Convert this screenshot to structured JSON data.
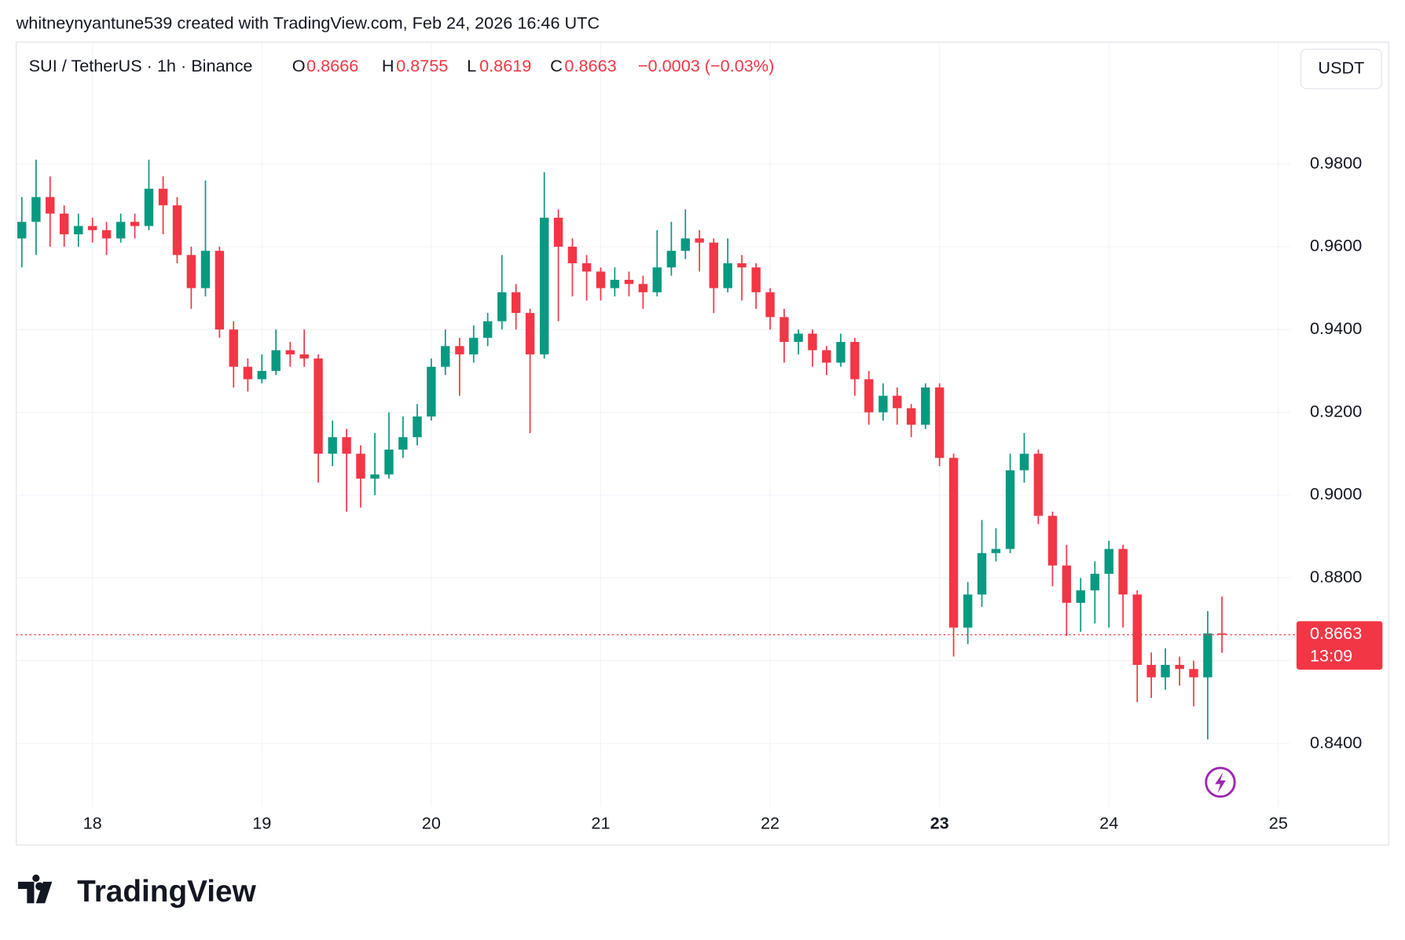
{
  "header": "whitneynyantune539 created with TradingView.com, Feb 24, 2026 16:46 UTC",
  "logo": "TradingView",
  "chart_data": {
    "type": "candlestick",
    "title": "SUI / TetherUS · 1h · Binance",
    "ohlc_labels": [
      "O",
      "H",
      "L",
      "C"
    ],
    "change": "−0.0003 (−0.03%)",
    "currency": "USDT",
    "countdown": "13:09",
    "up_color": "#089981",
    "down_color": "#f23645",
    "grid": true,
    "highlight_xtick": 23,
    "xlim": [
      17.55,
      25.07
    ],
    "xticks": [
      18,
      19,
      20,
      21,
      22,
      23,
      24,
      25
    ],
    "ylim": [
      0.8248,
      1.0092
    ],
    "yticks": [
      {
        "value": 0.84,
        "label": "0.8400"
      },
      {
        "value": 0.86,
        "label": "0.8600"
      },
      {
        "value": 0.88,
        "label": "0.8800"
      },
      {
        "value": 0.9,
        "label": "0.9000"
      },
      {
        "value": 0.92,
        "label": "0.9200"
      },
      {
        "value": 0.94,
        "label": "0.9400"
      },
      {
        "value": 0.96,
        "label": "0.9600"
      },
      {
        "value": 0.98,
        "label": "0.9800"
      }
    ],
    "x": [
      17.583,
      17.667,
      17.75,
      17.833,
      17.917,
      18,
      18.083,
      18.167,
      18.25,
      18.333,
      18.417,
      18.5,
      18.583,
      18.667,
      18.75,
      18.833,
      18.917,
      19,
      19.083,
      19.167,
      19.25,
      19.333,
      19.417,
      19.5,
      19.583,
      19.667,
      19.75,
      19.833,
      19.917,
      20,
      20.083,
      20.167,
      20.25,
      20.333,
      20.417,
      20.5,
      20.583,
      20.667,
      20.75,
      20.833,
      20.917,
      21,
      21.083,
      21.167,
      21.25,
      21.333,
      21.417,
      21.5,
      21.583,
      21.667,
      21.75,
      21.833,
      21.917,
      22,
      22.083,
      22.167,
      22.25,
      22.333,
      22.417,
      22.5,
      22.583,
      22.667,
      22.75,
      22.833,
      22.917,
      23,
      23.083,
      23.167,
      23.25,
      23.333,
      23.417,
      23.5,
      23.583,
      23.667,
      23.75,
      23.833,
      23.917,
      24,
      24.083,
      24.167,
      24.25,
      24.333,
      24.417,
      24.5,
      24.583,
      24.667
    ],
    "open": [
      0.962,
      0.966,
      0.972,
      0.968,
      0.963,
      0.965,
      0.964,
      0.962,
      0.966,
      0.965,
      0.974,
      0.97,
      0.958,
      0.95,
      0.959,
      0.94,
      0.931,
      0.928,
      0.93,
      0.935,
      0.934,
      0.933,
      0.91,
      0.914,
      0.91,
      0.904,
      0.905,
      0.911,
      0.914,
      0.919,
      0.931,
      0.936,
      0.934,
      0.938,
      0.942,
      0.949,
      0.944,
      0.934,
      0.967,
      0.96,
      0.956,
      0.954,
      0.95,
      0.952,
      0.951,
      0.949,
      0.955,
      0.959,
      0.962,
      0.961,
      0.95,
      0.956,
      0.955,
      0.949,
      0.943,
      0.937,
      0.939,
      0.935,
      0.932,
      0.937,
      0.928,
      0.92,
      0.924,
      0.921,
      0.917,
      0.926,
      0.909,
      0.868,
      0.876,
      0.886,
      0.887,
      0.906,
      0.91,
      0.895,
      0.883,
      0.874,
      0.877,
      0.881,
      0.887,
      0.876,
      0.859,
      0.856,
      0.859,
      0.858,
      0.856,
      0.8666
    ],
    "high": [
      0.972,
      0.981,
      0.977,
      0.97,
      0.968,
      0.967,
      0.966,
      0.968,
      0.968,
      0.981,
      0.977,
      0.972,
      0.96,
      0.976,
      0.96,
      0.942,
      0.933,
      0.934,
      0.94,
      0.937,
      0.94,
      0.934,
      0.918,
      0.916,
      0.912,
      0.915,
      0.92,
      0.919,
      0.922,
      0.933,
      0.94,
      0.938,
      0.941,
      0.944,
      0.958,
      0.951,
      0.945,
      0.978,
      0.969,
      0.962,
      0.958,
      0.955,
      0.955,
      0.954,
      0.953,
      0.964,
      0.966,
      0.969,
      0.964,
      0.962,
      0.962,
      0.958,
      0.956,
      0.95,
      0.945,
      0.94,
      0.94,
      0.936,
      0.939,
      0.938,
      0.93,
      0.927,
      0.926,
      0.922,
      0.927,
      0.927,
      0.91,
      0.879,
      0.894,
      0.892,
      0.91,
      0.915,
      0.911,
      0.896,
      0.888,
      0.88,
      0.884,
      0.889,
      0.888,
      0.877,
      0.862,
      0.863,
      0.861,
      0.86,
      0.872,
      0.8755
    ],
    "low": [
      0.955,
      0.958,
      0.96,
      0.96,
      0.96,
      0.961,
      0.958,
      0.961,
      0.962,
      0.964,
      0.963,
      0.956,
      0.945,
      0.948,
      0.938,
      0.926,
      0.925,
      0.927,
      0.929,
      0.931,
      0.931,
      0.903,
      0.907,
      0.896,
      0.897,
      0.9,
      0.904,
      0.909,
      0.912,
      0.918,
      0.929,
      0.924,
      0.932,
      0.936,
      0.94,
      0.94,
      0.915,
      0.933,
      0.942,
      0.948,
      0.947,
      0.947,
      0.948,
      0.948,
      0.945,
      0.948,
      0.953,
      0.957,
      0.954,
      0.944,
      0.949,
      0.947,
      0.945,
      0.94,
      0.932,
      0.934,
      0.931,
      0.929,
      0.931,
      0.924,
      0.917,
      0.918,
      0.917,
      0.914,
      0.916,
      0.907,
      0.861,
      0.864,
      0.873,
      0.884,
      0.886,
      0.903,
      0.893,
      0.878,
      0.866,
      0.867,
      0.869,
      0.868,
      0.868,
      0.85,
      0.851,
      0.853,
      0.854,
      0.849,
      0.841,
      0.8619
    ],
    "close": [
      0.966,
      0.972,
      0.968,
      0.963,
      0.965,
      0.964,
      0.962,
      0.966,
      0.965,
      0.974,
      0.97,
      0.958,
      0.95,
      0.959,
      0.94,
      0.931,
      0.928,
      0.93,
      0.935,
      0.934,
      0.933,
      0.91,
      0.914,
      0.91,
      0.904,
      0.905,
      0.911,
      0.914,
      0.919,
      0.931,
      0.936,
      0.934,
      0.938,
      0.942,
      0.949,
      0.944,
      0.934,
      0.967,
      0.96,
      0.956,
      0.954,
      0.95,
      0.952,
      0.951,
      0.949,
      0.955,
      0.959,
      0.962,
      0.961,
      0.95,
      0.956,
      0.955,
      0.949,
      0.943,
      0.937,
      0.939,
      0.935,
      0.932,
      0.937,
      0.928,
      0.92,
      0.924,
      0.921,
      0.917,
      0.926,
      0.909,
      0.868,
      0.876,
      0.886,
      0.887,
      0.906,
      0.91,
      0.895,
      0.883,
      0.874,
      0.877,
      0.881,
      0.887,
      0.876,
      0.859,
      0.856,
      0.859,
      0.858,
      0.856,
      0.8666,
      0.8663
    ]
  }
}
